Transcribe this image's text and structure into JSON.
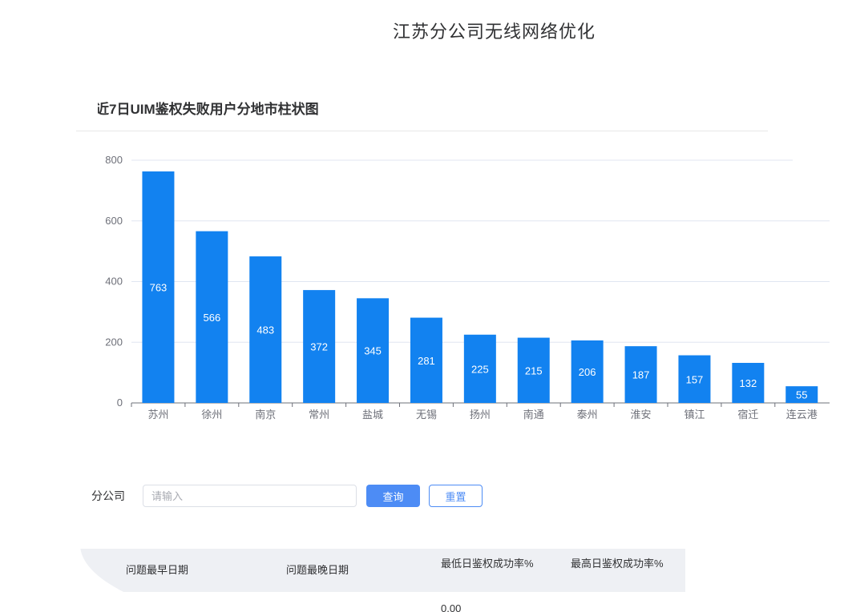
{
  "header": {
    "title": "江苏分公司无线网络优化"
  },
  "chart_data": {
    "type": "bar",
    "title": "近7日UIM鉴权失败用户分地市柱状图",
    "categories": [
      "苏州",
      "徐州",
      "南京",
      "常州",
      "盐城",
      "无锡",
      "扬州",
      "南通",
      "泰州",
      "淮安",
      "镇江",
      "宿迁",
      "连云港"
    ],
    "values": [
      763,
      566,
      483,
      372,
      345,
      281,
      225,
      215,
      206,
      187,
      157,
      132,
      55
    ],
    "ylim": [
      0,
      800
    ],
    "yticks": [
      0,
      200,
      400,
      600,
      800
    ],
    "xlabel": "",
    "ylabel": "",
    "grid": true,
    "bar_color": "#1282f0"
  },
  "filter": {
    "label": "分公司",
    "placeholder": "请输入",
    "query_label": "查询",
    "reset_label": "重置"
  },
  "table": {
    "columns": [
      "问题最早日期",
      "问题最晚日期",
      "最低日鉴权成功率%",
      "最高日鉴权成功率%"
    ],
    "first_row": {
      "min_rate": "0.00"
    }
  }
}
